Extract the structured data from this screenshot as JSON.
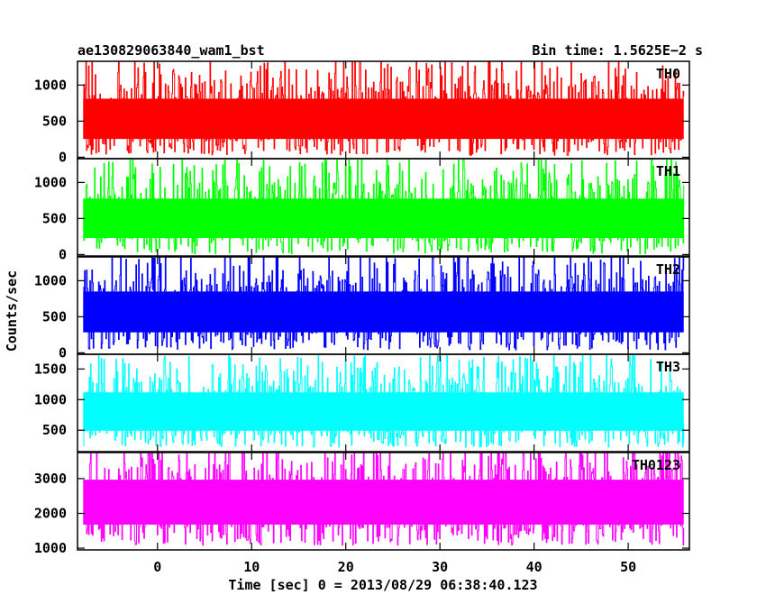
{
  "header": {
    "left_title": "ae130829063840_wam1_bst",
    "right_title": "Bin time: 1.5625E−2 s"
  },
  "chart_data": {
    "type": "line",
    "x": {
      "label": "Time [sec] 0 = 2013/08/29 06:38:40.123",
      "lim": [
        -8.5,
        56.5
      ],
      "ticks": [
        0,
        10,
        20,
        30,
        40,
        50
      ],
      "data_range": [
        -7.9,
        55.9
      ],
      "bin_time": 0.015625
    },
    "ylabel": "Counts/sec",
    "panels": [
      {
        "name": "TH0",
        "color": "#ff0000",
        "ylim": [
          -20,
          1330
        ],
        "ticks": [
          0,
          500,
          1000
        ],
        "envelope": [
          {
            "x": -7.9,
            "low": 110,
            "mid": 500,
            "high": 1020
          },
          {
            "x": 25,
            "low": 110,
            "mid": 520,
            "high": 1050
          },
          {
            "x": 55.9,
            "low": 110,
            "mid": 540,
            "high": 1080
          }
        ]
      },
      {
        "name": "TH1",
        "color": "#00ff00",
        "ylim": [
          -20,
          1330
        ],
        "ticks": [
          0,
          500,
          1000
        ],
        "envelope": [
          {
            "x": -7.9,
            "low": 90,
            "mid": 480,
            "high": 1000
          },
          {
            "x": 25,
            "low": 90,
            "mid": 490,
            "high": 1010
          },
          {
            "x": 55.9,
            "low": 90,
            "mid": 490,
            "high": 1010
          }
        ]
      },
      {
        "name": "TH2",
        "color": "#0000ff",
        "ylim": [
          -20,
          1330
        ],
        "ticks": [
          0,
          500,
          1000
        ],
        "envelope": [
          {
            "x": -7.9,
            "low": 130,
            "mid": 560,
            "high": 1060
          },
          {
            "x": 25,
            "low": 130,
            "mid": 570,
            "high": 1080
          },
          {
            "x": 55.9,
            "low": 130,
            "mid": 580,
            "high": 1100
          }
        ]
      },
      {
        "name": "TH3",
        "color": "#00ffff",
        "ylim": [
          150,
          1740
        ],
        "ticks": [
          500,
          1000,
          1500
        ],
        "envelope": [
          {
            "x": -7.9,
            "low": 320,
            "mid": 800,
            "high": 1350
          },
          {
            "x": 25,
            "low": 320,
            "mid": 810,
            "high": 1370
          },
          {
            "x": 55.9,
            "low": 320,
            "mid": 820,
            "high": 1380
          }
        ]
      },
      {
        "name": "TH0123",
        "color": "#ff00ff",
        "ylim": [
          950,
          3750
        ],
        "ticks": [
          1000,
          2000,
          3000
        ],
        "envelope": [
          {
            "x": -7.9,
            "low": 1300,
            "mid": 2350,
            "high": 3400
          },
          {
            "x": 25,
            "low": 1300,
            "mid": 2380,
            "high": 3450
          },
          {
            "x": 55.9,
            "low": 1300,
            "mid": 2400,
            "high": 3480
          }
        ]
      }
    ]
  }
}
